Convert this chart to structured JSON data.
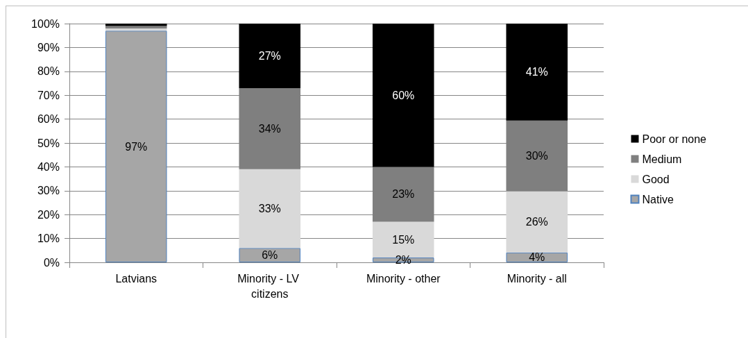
{
  "chart_data": {
    "type": "bar",
    "stacked": true,
    "categories": [
      "Latvians",
      "Minority - LV citizens",
      "Minority - other",
      "Minority - all"
    ],
    "series": [
      {
        "name": "Native",
        "color": "#a6a6a6",
        "values": [
          97,
          6,
          2,
          4.1
        ],
        "value_labels": [
          "97%",
          "6%",
          "2%",
          "4%"
        ]
      },
      {
        "name": "Good",
        "color": "#d9d9d9",
        "values": [
          1,
          33,
          15,
          25.7
        ],
        "value_labels": [
          null,
          "33%",
          "15%",
          "26%"
        ]
      },
      {
        "name": "Medium",
        "color": "#7f7f7f",
        "values": [
          1,
          34,
          23,
          29.6
        ],
        "value_labels": [
          null,
          "34%",
          "23%",
          "30%"
        ]
      },
      {
        "name": "Poor or none",
        "color": "#000000",
        "values": [
          1,
          27,
          60,
          40.6
        ],
        "value_labels": [
          null,
          "27%",
          "60%",
          "41%"
        ]
      }
    ],
    "ylim": [
      0,
      100
    ],
    "yticks": [
      {
        "value": 0,
        "label": "0%"
      },
      {
        "value": 10,
        "label": "10%"
      },
      {
        "value": 20,
        "label": "20%"
      },
      {
        "value": 30,
        "label": "30%"
      },
      {
        "value": 40,
        "label": "40%"
      },
      {
        "value": 50,
        "label": "50%"
      },
      {
        "value": 60,
        "label": "60%"
      },
      {
        "value": 70,
        "label": "70%"
      },
      {
        "value": 80,
        "label": "80%"
      },
      {
        "value": 90,
        "label": "90%"
      },
      {
        "value": 100,
        "label": "100%"
      }
    ],
    "grid": "y",
    "legend": "right"
  }
}
